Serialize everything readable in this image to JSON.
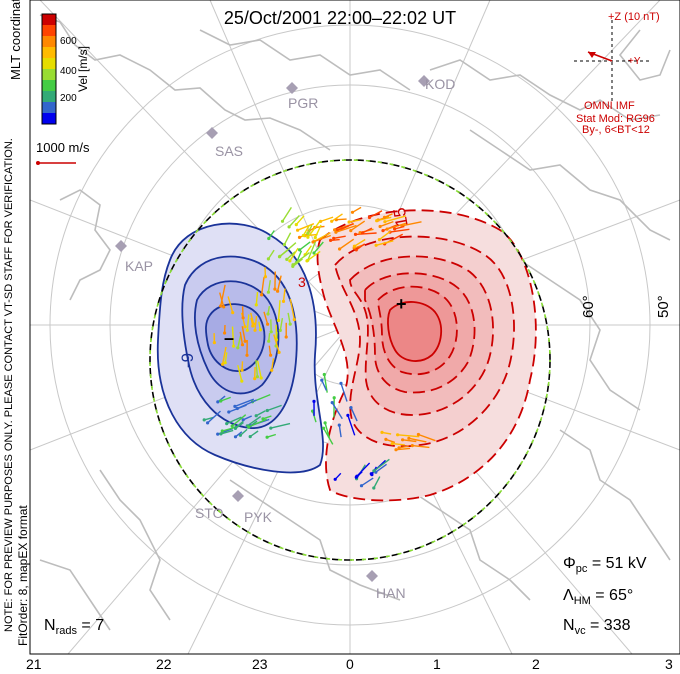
{
  "title": "25/Oct/2001 22:00–22:02 UT",
  "colorbar": {
    "label": "Vel [m/s]",
    "coords_label": "MLT coordinates",
    "ticks": [
      "600",
      "400",
      "200"
    ],
    "colors": [
      "#cc0000",
      "#ff4400",
      "#ff8800",
      "#ffbb00",
      "#e6dd00",
      "#99dd33",
      "#44cc44",
      "#33aa77",
      "#3366cc",
      "#0000ee"
    ]
  },
  "ref_vector": {
    "label": "1000 m/s"
  },
  "imf": {
    "plus_z": "+Z (10 nT)",
    "plus_y": "+Y",
    "source": "OMNI IMF",
    "model": "Stat Mod: RG96",
    "condition": "By-, 6<BT<12"
  },
  "stations": [
    "PGR",
    "KOD",
    "SAS",
    "KAP",
    "STO",
    "PYK",
    "HAN"
  ],
  "latitude_labels": [
    "60°",
    "50°"
  ],
  "mlt_axis": [
    "21",
    "22",
    "23",
    "0",
    "1",
    "2",
    "3"
  ],
  "contour_labels": {
    "negative": "-9",
    "positive": "15",
    "other": "3"
  },
  "potential_markers": {
    "minimum": "–",
    "maximum": "+"
  },
  "stats": {
    "phi_pc_symbol": "Φ",
    "phi_pc_sub": "pc",
    "phi_pc_value": "= 51 kV",
    "lambda_symbol": "Λ",
    "lambda_sub": "HM",
    "lambda_value": "= 65°",
    "nvc_symbol": "N",
    "nvc_sub": "vc",
    "nvc_value": "= 338",
    "nrads_symbol": "N",
    "nrads_sub": "rads",
    "nrads_value": "= 7"
  },
  "note": "NOTE: FOR PREVIEW PURPOSES ONLY. PLEASE CONTACT VT-SD STAFF FOR VERIFICATION.",
  "fit_order": "FitOrder: 8, mapEX format",
  "colors": {
    "positive": "#cc0000",
    "negative": "#1a3399",
    "station": "#9a93a4",
    "grid": "#c8c8c8"
  }
}
